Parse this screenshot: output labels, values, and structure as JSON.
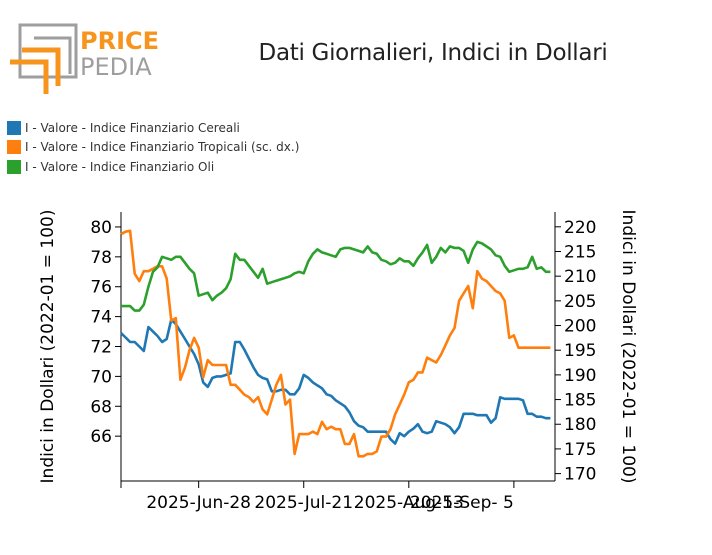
{
  "brand": {
    "name_line1": "PRICE",
    "name_line2": "PEDIA",
    "accent_color": "#f7941d",
    "muted_color": "#9e9e9e"
  },
  "title": "Dati Giornalieri, Indici in Dollari",
  "legend": [
    {
      "label": "I - Valore - Indice Finanziario Cereali",
      "color": "#1f77b4"
    },
    {
      "label": "I - Valore - Indice Finanziario Tropicali (sc. dx.)",
      "color": "#ff7f0e"
    },
    {
      "label": "I - Valore - Indice Finanziario Oli",
      "color": "#2ca02c"
    }
  ],
  "chart_data": {
    "type": "line",
    "title": "Dati Giornalieri, Indici in Dollari",
    "xlabel": "",
    "ylabel_left": "Indici in Dollari (2022-01 = 100)",
    "ylabel_right": "Indici in Dollari (2022-01 = 100)",
    "x_ticks": [
      "2025-Jun-28",
      "2025-Jul-21",
      "2025-Aug-13",
      "2025-Sep- 5"
    ],
    "ylim_left": [
      63.0,
      81.0
    ],
    "yticks_left": [
      66,
      68,
      70,
      72,
      74,
      76,
      78,
      80
    ],
    "ylim_right": [
      168.5,
      223.0
    ],
    "yticks_right": [
      170,
      175,
      180,
      185,
      190,
      195,
      200,
      205,
      210,
      215,
      220
    ],
    "x_range_days": [
      0,
      95
    ],
    "x_tick_days": [
      17,
      40,
      63,
      86
    ],
    "grid": false,
    "legend_position": "top-left",
    "series": [
      {
        "name": "I - Valore - Indice Finanziario Cereali",
        "axis": "left",
        "color": "#1f77b4",
        "x": [
          0,
          1,
          2,
          3,
          4,
          5,
          6,
          7,
          8,
          9,
          10,
          11,
          12,
          13,
          14,
          15,
          16,
          17,
          18,
          19,
          20,
          21,
          22,
          23,
          24,
          25,
          26,
          27,
          28,
          29,
          30,
          31,
          32,
          33,
          34,
          35,
          36,
          37,
          38,
          39,
          40,
          41,
          42,
          43,
          44,
          45,
          46,
          47,
          48,
          49,
          50,
          51,
          52,
          53,
          54,
          55,
          56,
          57,
          58,
          59,
          60,
          61,
          62,
          63,
          64,
          65,
          66,
          67,
          68,
          69,
          70,
          71,
          72,
          73,
          74,
          75,
          76,
          77,
          78,
          79,
          80,
          81,
          82,
          83,
          84,
          85,
          86,
          87,
          88,
          89,
          90,
          91,
          92,
          93,
          94
        ],
        "values": [
          72.9,
          72.6,
          72.3,
          72.3,
          72.0,
          71.7,
          73.3,
          73.0,
          72.7,
          72.3,
          72.5,
          73.8,
          73.5,
          73.0,
          72.5,
          72.0,
          71.5,
          70.8,
          69.6,
          69.3,
          69.9,
          70.0,
          70.0,
          70.1,
          70.2,
          72.3,
          72.3,
          71.8,
          71.2,
          70.6,
          70.1,
          69.9,
          69.8,
          69.0,
          69.0,
          69.1,
          69.1,
          68.8,
          68.8,
          69.2,
          70.1,
          69.9,
          69.6,
          69.4,
          69.2,
          68.8,
          68.7,
          68.4,
          68.2,
          68.0,
          67.6,
          67.0,
          66.7,
          66.6,
          66.3,
          66.3,
          66.3,
          66.3,
          66.3,
          65.8,
          65.5,
          66.2,
          66.0,
          66.3,
          66.5,
          66.8,
          66.3,
          66.2,
          66.3,
          67.0,
          66.9,
          66.8,
          66.6,
          66.2,
          66.6,
          67.5,
          67.5,
          67.5,
          67.4,
          67.4,
          67.4,
          66.9,
          67.2,
          68.6,
          68.5,
          68.5,
          68.5,
          68.5,
          68.4,
          67.5,
          67.5,
          67.3,
          67.3,
          67.2,
          67.2
        ]
      },
      {
        "name": "I - Valore - Indice Finanziario Tropicali (sc. dx.)",
        "axis": "right",
        "color": "#ff7f0e",
        "x": [
          0,
          1,
          2,
          3,
          4,
          5,
          6,
          7,
          8,
          9,
          10,
          11,
          12,
          13,
          14,
          15,
          16,
          17,
          18,
          19,
          20,
          21,
          22,
          23,
          24,
          25,
          26,
          27,
          28,
          29,
          30,
          31,
          32,
          33,
          34,
          35,
          36,
          37,
          38,
          39,
          40,
          41,
          42,
          43,
          44,
          45,
          46,
          47,
          48,
          49,
          50,
          51,
          52,
          53,
          54,
          55,
          56,
          57,
          58,
          59,
          60,
          61,
          62,
          63,
          64,
          65,
          66,
          67,
          68,
          69,
          70,
          71,
          72,
          73,
          74,
          75,
          76,
          77,
          78,
          79,
          80,
          81,
          82,
          83,
          84,
          85,
          86,
          87,
          88,
          89,
          90,
          91,
          92,
          93,
          94
        ],
        "values": [
          218.5,
          219.0,
          219.2,
          210.5,
          209.0,
          211.0,
          211.0,
          211.5,
          212.0,
          212.0,
          209.5,
          201.0,
          201.5,
          189.0,
          191.5,
          195.0,
          197.5,
          195.5,
          189.5,
          193.0,
          192.0,
          192.0,
          192.0,
          192.0,
          188.0,
          188.0,
          187.0,
          186.0,
          185.5,
          184.5,
          185.5,
          183.0,
          182.0,
          185.0,
          188.0,
          190.0,
          184.0,
          185.0,
          174.0,
          178.0,
          178.0,
          178.0,
          178.5,
          178.0,
          180.5,
          179.0,
          179.5,
          179.0,
          179.0,
          176.0,
          176.0,
          178.0,
          173.5,
          173.5,
          174.0,
          174.0,
          174.5,
          177.5,
          177.5,
          179.0,
          182.0,
          184.0,
          186.0,
          188.5,
          189.0,
          190.5,
          190.5,
          193.5,
          193.0,
          192.5,
          194.0,
          196.0,
          198.0,
          199.5,
          205.0,
          206.5,
          208.0,
          203.5,
          211.0,
          209.5,
          209.0,
          208.0,
          207.0,
          206.5,
          205.0,
          197.5,
          198.0,
          195.5,
          195.5,
          195.5,
          195.5,
          195.5,
          195.5,
          195.5,
          195.5
        ]
      },
      {
        "name": "I - Valore - Indice Finanziario Oli",
        "axis": "left",
        "color": "#2ca02c",
        "x": [
          0,
          1,
          2,
          3,
          4,
          5,
          6,
          7,
          8,
          9,
          10,
          11,
          12,
          13,
          14,
          15,
          16,
          17,
          18,
          19,
          20,
          21,
          22,
          23,
          24,
          25,
          26,
          27,
          28,
          29,
          30,
          31,
          32,
          33,
          34,
          35,
          36,
          37,
          38,
          39,
          40,
          41,
          42,
          43,
          44,
          45,
          46,
          47,
          48,
          49,
          50,
          51,
          52,
          53,
          54,
          55,
          56,
          57,
          58,
          59,
          60,
          61,
          62,
          63,
          64,
          65,
          66,
          67,
          68,
          69,
          70,
          71,
          72,
          73,
          74,
          75,
          76,
          77,
          78,
          79,
          80,
          81,
          82,
          83,
          84,
          85,
          86,
          87,
          88,
          89,
          90,
          91,
          92,
          93,
          94
        ],
        "values": [
          74.7,
          74.7,
          74.7,
          74.4,
          74.4,
          74.8,
          76.0,
          77.0,
          77.3,
          78.0,
          77.9,
          77.8,
          78.0,
          78.0,
          77.6,
          77.2,
          76.9,
          75.4,
          75.5,
          75.6,
          75.1,
          75.4,
          75.6,
          75.9,
          76.5,
          78.2,
          77.8,
          77.8,
          77.4,
          77.0,
          76.6,
          77.2,
          76.2,
          76.3,
          76.4,
          76.5,
          76.6,
          76.7,
          76.9,
          77.0,
          76.9,
          77.7,
          78.2,
          78.5,
          78.3,
          78.2,
          78.1,
          78.0,
          78.5,
          78.6,
          78.6,
          78.5,
          78.4,
          78.3,
          78.7,
          78.3,
          78.2,
          77.8,
          77.7,
          77.5,
          77.6,
          77.9,
          77.7,
          77.7,
          77.4,
          77.9,
          78.3,
          78.8,
          77.6,
          78.0,
          78.6,
          78.3,
          78.7,
          78.6,
          78.6,
          78.4,
          77.6,
          78.5,
          79.0,
          78.9,
          78.7,
          78.5,
          78.1,
          78.0,
          77.4,
          77.0,
          77.1,
          77.2,
          77.2,
          77.3,
          78.0,
          77.2,
          77.3,
          77.0,
          77.0
        ]
      }
    ]
  }
}
